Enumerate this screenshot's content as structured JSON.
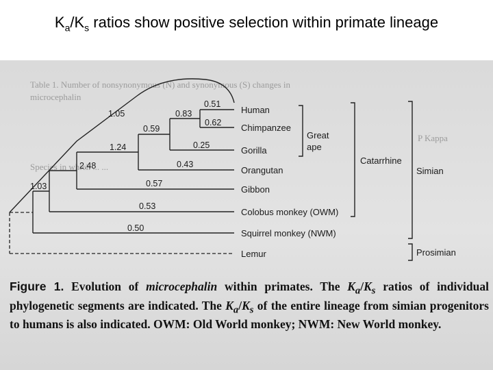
{
  "slide": {
    "title_part_a": "K",
    "title_sub_a": "a",
    "title_slash": "/K",
    "title_sub_s": "s",
    "title_rest": " ratios show positive selection within primate lineage"
  },
  "background": {
    "ghost_lines": [
      "Table 1. Number of nonsynonymous (N) and synonymous (S) changes in",
      "microcephalin",
      "P  Kappa",
      "Species in which ... ..."
    ]
  },
  "tree": {
    "taxa": [
      "Human",
      "Chimpanzee",
      "Gorilla",
      "Orangutan",
      "Gibbon",
      "Colobus monkey (OWM)",
      "Squirrel monkey (NWM)",
      "Lemur"
    ],
    "ratios": {
      "human": "0.51",
      "chimp": "0.62",
      "human_chimp": "0.83",
      "gorilla": "0.25",
      "hcg": "0.59",
      "orangutan": "0.43",
      "great_ape": "1.24",
      "gibbon": "0.57",
      "hominoid": "2.48",
      "colobus": "0.53",
      "catarrhine": "1.03",
      "squirrel": "0.50",
      "lineage": "1.05"
    },
    "groups": {
      "great_ape_line1": "Great",
      "great_ape_line2": "ape",
      "catarrhine": "Catarrhine",
      "simian": "Simian",
      "prosimian": "Prosimian"
    }
  },
  "caption": {
    "fig_label": "Figure 1.",
    "t1": " Evolution of ",
    "t2": "microcephalin",
    "t3": " within primates. The ",
    "t4": "K",
    "t5": "a",
    "t6": "/",
    "t7": "K",
    "t8": "s",
    "t9": " ratios of individual phylogenetic segments are indicated. The ",
    "t10": "K",
    "t11": "a",
    "t12": "/",
    "t13": "K",
    "t14": "s",
    "t15": " of the entire lineage from simian progenitors to humans is also indicated. OWM: Old World monkey; NWM: New World monkey."
  }
}
